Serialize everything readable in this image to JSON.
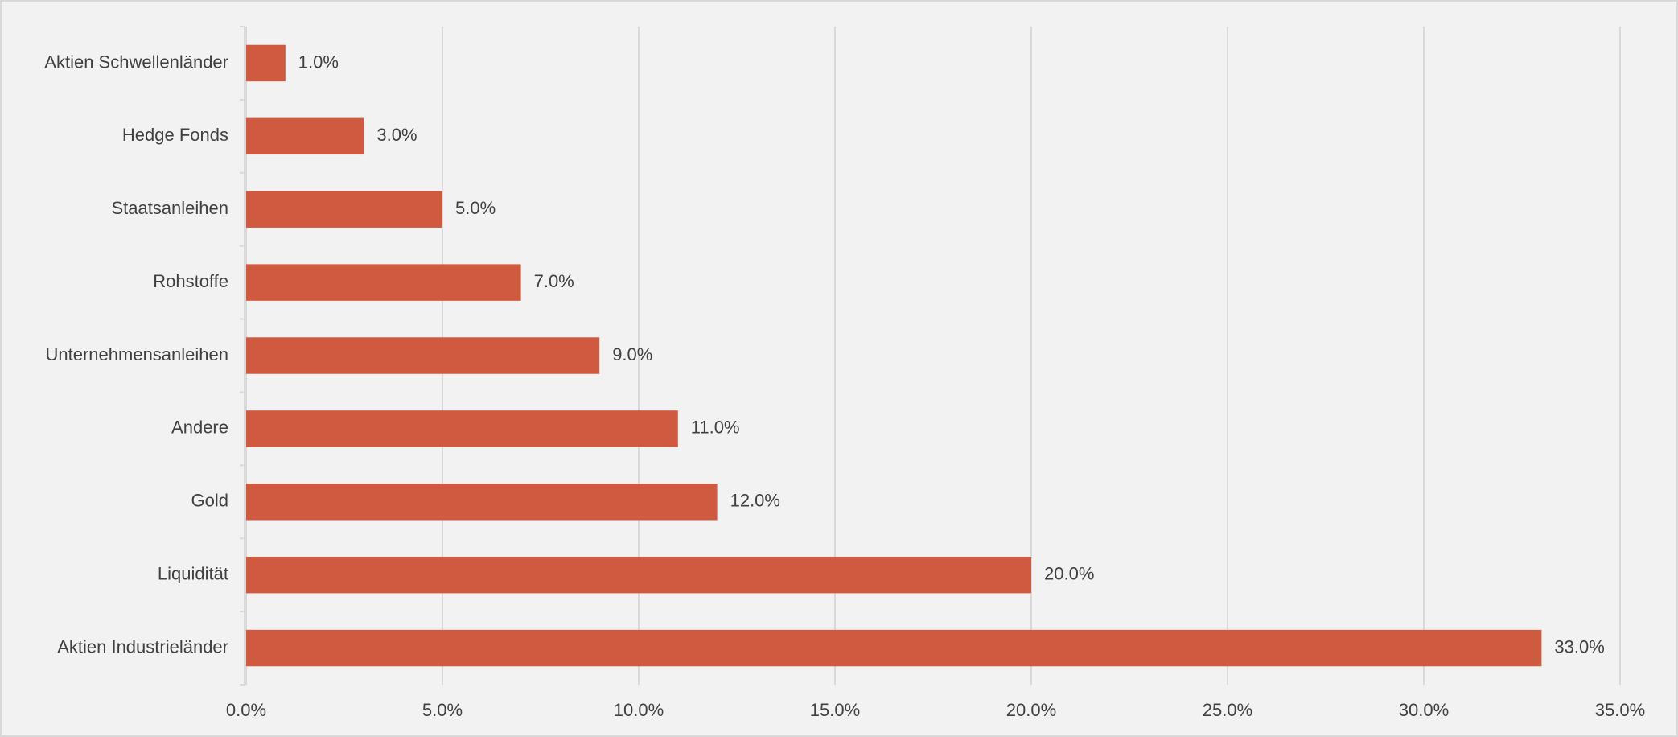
{
  "chart_data": {
    "type": "bar",
    "orientation": "horizontal",
    "categories": [
      "Aktien Schwellenländer",
      "Hedge Fonds",
      "Staatsanleihen",
      "Rohstoffe",
      "Unternehmensanleihen",
      "Andere",
      "Gold",
      "Liquidität",
      "Aktien Industrieländer"
    ],
    "values": [
      1.0,
      3.0,
      5.0,
      7.0,
      9.0,
      11.0,
      12.0,
      20.0,
      33.0
    ],
    "value_labels": [
      "1.0%",
      "3.0%",
      "5.0%",
      "7.0%",
      "9.0%",
      "11.0%",
      "12.0%",
      "20.0%",
      "33.0%"
    ],
    "color": "#d05a40",
    "xlim": [
      0,
      35
    ],
    "xticks": [
      {
        "value": 0,
        "label": "0.0%"
      },
      {
        "value": 5,
        "label": "5.0%"
      },
      {
        "value": 10,
        "label": "10.0%"
      },
      {
        "value": 15,
        "label": "15.0%"
      },
      {
        "value": 20,
        "label": "20.0%"
      },
      {
        "value": 25,
        "label": "25.0%"
      },
      {
        "value": 30,
        "label": "30.0%"
      },
      {
        "value": 35,
        "label": "35.0%"
      }
    ],
    "grid": true
  }
}
